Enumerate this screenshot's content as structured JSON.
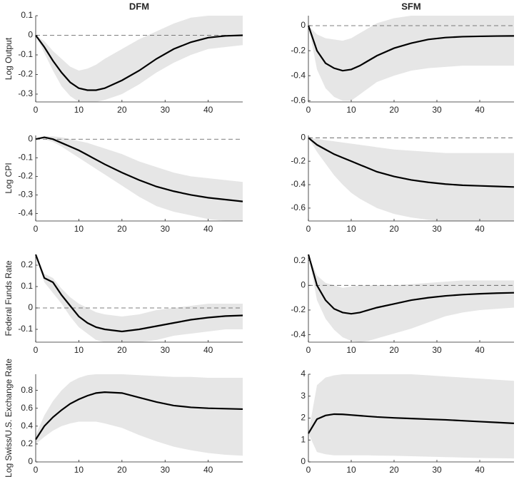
{
  "chart_data": [
    {
      "type": "line",
      "title": "DFM",
      "ylabel": "Log Output",
      "x": [
        0,
        2,
        4,
        6,
        8,
        10,
        12,
        14,
        16,
        20,
        24,
        28,
        32,
        36,
        40,
        44,
        48
      ],
      "xlim": [
        0,
        48
      ],
      "xticks": [
        0,
        10,
        20,
        30,
        40
      ],
      "ylim": [
        -0.34,
        0.1
      ],
      "yticks": [
        0.1,
        0,
        -0.1,
        -0.2,
        -0.3
      ],
      "hline": 0,
      "color": "#000000",
      "band_color": "#e6e6e6",
      "values": [
        0,
        -0.06,
        -0.13,
        -0.19,
        -0.24,
        -0.27,
        -0.28,
        -0.28,
        -0.27,
        -0.23,
        -0.18,
        -0.12,
        -0.07,
        -0.035,
        -0.012,
        -0.003,
        0
      ],
      "band_lower": [
        0,
        -0.09,
        -0.18,
        -0.26,
        -0.31,
        -0.34,
        -0.34,
        -0.34,
        -0.33,
        -0.3,
        -0.25,
        -0.19,
        -0.14,
        -0.1,
        -0.07,
        -0.06,
        -0.05
      ],
      "band_upper": [
        0,
        -0.03,
        -0.08,
        -0.12,
        -0.16,
        -0.18,
        -0.17,
        -0.15,
        -0.12,
        -0.07,
        -0.02,
        0.02,
        0.06,
        0.09,
        0.1,
        0.1,
        0.1
      ]
    },
    {
      "type": "line",
      "title": "SFM",
      "x": [
        0,
        2,
        4,
        6,
        8,
        10,
        12,
        14,
        16,
        20,
        24,
        28,
        32,
        36,
        40,
        44,
        48
      ],
      "xlim": [
        0,
        48
      ],
      "xticks": [
        0,
        10,
        20,
        30,
        40
      ],
      "ylim": [
        -0.61,
        0.08
      ],
      "yticks": [
        0,
        -0.2,
        -0.4,
        -0.6
      ],
      "hline": 0,
      "color": "#000000",
      "band_color": "#e6e6e6",
      "values": [
        0,
        -0.2,
        -0.3,
        -0.34,
        -0.36,
        -0.35,
        -0.32,
        -0.28,
        -0.24,
        -0.18,
        -0.14,
        -0.11,
        -0.095,
        -0.088,
        -0.085,
        -0.083,
        -0.082
      ],
      "band_lower": [
        0,
        -0.35,
        -0.5,
        -0.57,
        -0.6,
        -0.6,
        -0.55,
        -0.5,
        -0.45,
        -0.4,
        -0.36,
        -0.34,
        -0.33,
        -0.32,
        -0.32,
        -0.32,
        -0.32
      ],
      "band_upper": [
        0,
        -0.07,
        -0.1,
        -0.11,
        -0.12,
        -0.1,
        -0.06,
        -0.02,
        0.02,
        0.06,
        0.08,
        0.08,
        0.08,
        0.08,
        0.08,
        0.08,
        0.08
      ]
    },
    {
      "type": "line",
      "ylabel": "Log CPI",
      "x": [
        0,
        2,
        4,
        6,
        8,
        10,
        12,
        14,
        16,
        20,
        24,
        28,
        32,
        36,
        40,
        44,
        48
      ],
      "xlim": [
        0,
        48
      ],
      "xticks": [
        0,
        10,
        20,
        30,
        40
      ],
      "ylim": [
        -0.44,
        0.02
      ],
      "yticks": [
        0,
        -0.1,
        -0.2,
        -0.3,
        -0.4
      ],
      "hline": 0,
      "color": "#000000",
      "band_color": "#e6e6e6",
      "values": [
        0,
        0.01,
        0,
        -0.02,
        -0.04,
        -0.06,
        -0.085,
        -0.11,
        -0.135,
        -0.18,
        -0.22,
        -0.255,
        -0.28,
        -0.3,
        -0.315,
        -0.325,
        -0.335
      ],
      "band_lower": [
        0,
        0,
        -0.015,
        -0.04,
        -0.07,
        -0.1,
        -0.13,
        -0.16,
        -0.19,
        -0.25,
        -0.31,
        -0.36,
        -0.39,
        -0.41,
        -0.43,
        -0.44,
        -0.44
      ],
      "band_upper": [
        0,
        0.015,
        0.015,
        0.01,
        0,
        -0.01,
        -0.02,
        -0.035,
        -0.05,
        -0.08,
        -0.12,
        -0.15,
        -0.18,
        -0.2,
        -0.21,
        -0.22,
        -0.23
      ]
    },
    {
      "type": "line",
      "x": [
        0,
        2,
        4,
        6,
        8,
        10,
        12,
        14,
        16,
        20,
        24,
        28,
        32,
        36,
        40,
        44,
        48
      ],
      "xlim": [
        0,
        48
      ],
      "xticks": [
        0,
        10,
        20,
        30,
        40
      ],
      "ylim": [
        -0.71,
        0.02
      ],
      "yticks": [
        0,
        -0.2,
        -0.4,
        -0.6
      ],
      "hline": 0,
      "color": "#000000",
      "band_color": "#e6e6e6",
      "values": [
        0,
        -0.06,
        -0.1,
        -0.14,
        -0.17,
        -0.2,
        -0.23,
        -0.26,
        -0.29,
        -0.33,
        -0.36,
        -0.38,
        -0.395,
        -0.405,
        -0.41,
        -0.415,
        -0.42
      ],
      "band_lower": [
        0,
        -0.12,
        -0.22,
        -0.32,
        -0.4,
        -0.47,
        -0.52,
        -0.56,
        -0.6,
        -0.65,
        -0.68,
        -0.7,
        -0.71,
        -0.71,
        -0.71,
        -0.71,
        -0.71
      ],
      "band_upper": [
        0,
        -0.01,
        -0.02,
        -0.03,
        -0.04,
        -0.05,
        -0.06,
        -0.07,
        -0.08,
        -0.1,
        -0.11,
        -0.12,
        -0.13,
        -0.13,
        -0.13,
        -0.13,
        -0.13
      ]
    },
    {
      "type": "line",
      "ylabel": "Federal Funds Rate",
      "x": [
        0,
        2,
        4,
        6,
        8,
        10,
        12,
        14,
        16,
        20,
        24,
        28,
        32,
        36,
        40,
        44,
        48
      ],
      "xlim": [
        0,
        48
      ],
      "xticks": [
        0,
        10,
        20,
        30,
        40
      ],
      "ylim": [
        -0.16,
        0.25
      ],
      "yticks": [
        0.2,
        0.1,
        0,
        -0.1
      ],
      "hline": 0,
      "color": "#000000",
      "band_color": "#e6e6e6",
      "values": [
        0.25,
        0.14,
        0.12,
        0.06,
        0.01,
        -0.04,
        -0.07,
        -0.09,
        -0.1,
        -0.11,
        -0.1,
        -0.085,
        -0.07,
        -0.055,
        -0.045,
        -0.038,
        -0.035
      ],
      "band_lower": [
        0.25,
        0.12,
        0.07,
        0.02,
        -0.04,
        -0.09,
        -0.12,
        -0.15,
        -0.16,
        -0.16,
        -0.16,
        -0.15,
        -0.13,
        -0.12,
        -0.11,
        -0.1,
        -0.1
      ],
      "band_upper": [
        0.25,
        0.16,
        0.14,
        0.09,
        0.05,
        0.02,
        0,
        -0.02,
        -0.03,
        -0.04,
        -0.03,
        -0.01,
        0,
        0.01,
        0.02,
        0.02,
        0.02
      ]
    },
    {
      "type": "line",
      "x": [
        0,
        2,
        4,
        6,
        8,
        10,
        12,
        14,
        16,
        20,
        24,
        28,
        32,
        36,
        40,
        44,
        48
      ],
      "xlim": [
        0,
        48
      ],
      "xticks": [
        0,
        10,
        20,
        30,
        40
      ],
      "ylim": [
        -0.46,
        0.25
      ],
      "yticks": [
        0.2,
        0,
        -0.2,
        -0.4
      ],
      "hline": 0,
      "color": "#000000",
      "band_color": "#e6e6e6",
      "values": [
        0.25,
        0,
        -0.12,
        -0.19,
        -0.22,
        -0.23,
        -0.22,
        -0.2,
        -0.18,
        -0.15,
        -0.12,
        -0.1,
        -0.085,
        -0.075,
        -0.068,
        -0.063,
        -0.06
      ],
      "band_lower": [
        0.25,
        -0.12,
        -0.27,
        -0.36,
        -0.42,
        -0.45,
        -0.46,
        -0.45,
        -0.43,
        -0.39,
        -0.35,
        -0.3,
        -0.25,
        -0.22,
        -0.2,
        -0.19,
        -0.18
      ],
      "band_upper": [
        0.25,
        0.08,
        0.02,
        0,
        -0.02,
        -0.01,
        0,
        0,
        0,
        0,
        0.01,
        0.02,
        0.03,
        0.04,
        0.04,
        0.04,
        0.04
      ]
    },
    {
      "type": "line",
      "ylabel": "Log Swiss/U.S. Exchange Rate",
      "x": [
        0,
        2,
        4,
        6,
        8,
        10,
        12,
        14,
        16,
        20,
        24,
        28,
        32,
        36,
        40,
        44,
        48
      ],
      "xlim": [
        0,
        48
      ],
      "xticks": [
        0,
        10,
        20,
        30,
        40
      ],
      "ylim": [
        0,
        0.98
      ],
      "yticks": [
        0,
        0.2,
        0.4,
        0.6,
        0.8
      ],
      "color": "#000000",
      "band_color": "#e6e6e6",
      "values": [
        0.25,
        0.4,
        0.5,
        0.58,
        0.65,
        0.7,
        0.74,
        0.77,
        0.78,
        0.77,
        0.72,
        0.67,
        0.63,
        0.61,
        0.6,
        0.595,
        0.59
      ],
      "band_lower": [
        0.2,
        0.28,
        0.35,
        0.4,
        0.43,
        0.45,
        0.45,
        0.45,
        0.43,
        0.38,
        0.3,
        0.23,
        0.17,
        0.13,
        0.1,
        0.08,
        0.07
      ],
      "band_upper": [
        0.3,
        0.52,
        0.68,
        0.8,
        0.89,
        0.94,
        0.97,
        0.98,
        0.98,
        0.98,
        0.97,
        0.96,
        0.95,
        0.95,
        0.94,
        0.94,
        0.94
      ]
    },
    {
      "type": "line",
      "x": [
        0,
        2,
        4,
        6,
        8,
        10,
        12,
        14,
        16,
        20,
        24,
        28,
        32,
        36,
        40,
        44,
        48
      ],
      "xlim": [
        0,
        48
      ],
      "xticks": [
        0,
        10,
        20,
        30,
        40
      ],
      "ylim": [
        0,
        4
      ],
      "yticks": [
        0,
        1,
        2,
        3,
        4
      ],
      "color": "#000000",
      "band_color": "#e6e6e6",
      "values": [
        1.3,
        1.95,
        2.12,
        2.18,
        2.17,
        2.14,
        2.11,
        2.08,
        2.05,
        2.01,
        1.98,
        1.95,
        1.92,
        1.88,
        1.84,
        1.8,
        1.76
      ],
      "band_lower": [
        1.3,
        0.45,
        0.35,
        0.3,
        0.3,
        0.3,
        0.3,
        0.3,
        0.29,
        0.28,
        0.26,
        0.24,
        0.22,
        0.2,
        0.18,
        0.17,
        0.16
      ],
      "band_upper": [
        1.3,
        3.5,
        3.85,
        3.95,
        4,
        4,
        4,
        4,
        4,
        4,
        4,
        3.95,
        3.9,
        3.85,
        3.8,
        3.75,
        3.7
      ]
    }
  ]
}
